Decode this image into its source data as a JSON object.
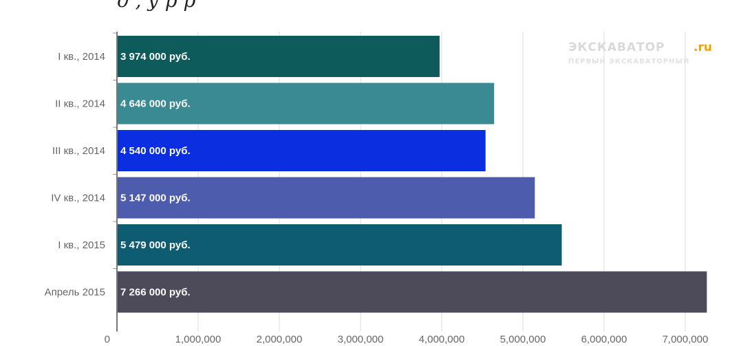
{
  "header": {
    "cut_text": "д                          ,                                       у                                 р                      р"
  },
  "watermark": {
    "main": "ЭКСКАВАТОР",
    "accent": ".ru",
    "sub": "ПЕРВЫЙ ЭКСКАВАТОРНЫЙ"
  },
  "chart_data": {
    "type": "bar",
    "orientation": "horizontal",
    "categories": [
      "I кв., 2014",
      "II кв., 2014",
      "III кв., 2014",
      "IV кв., 2014",
      "I кв., 2015",
      "Апрель 2015"
    ],
    "values": [
      3974000,
      4646000,
      4540000,
      5147000,
      5479000,
      7266000
    ],
    "data_labels": [
      "3 974 000 руб.",
      "4 646 000 руб.",
      "4 540 000 руб.",
      "5 147 000 руб.",
      "5 479 000 руб.",
      "7 266 000 руб."
    ],
    "colors": [
      "#0d5b5b",
      "#3a8a93",
      "#0a2ee0",
      "#4e5cad",
      "#0d5c72",
      "#4d4a5a"
    ],
    "x_ticks": [
      0,
      1000000,
      2000000,
      3000000,
      4000000,
      5000000,
      6000000,
      7000000
    ],
    "x_tick_labels": [
      "0",
      "1,000,000",
      "2,000,000",
      "3,000,000",
      "4,000,000",
      "5,000,000",
      "6,000,000",
      "7,000,000"
    ],
    "xlim": [
      0,
      7300000
    ],
    "grid": true,
    "title": "",
    "xlabel": "",
    "ylabel": ""
  }
}
